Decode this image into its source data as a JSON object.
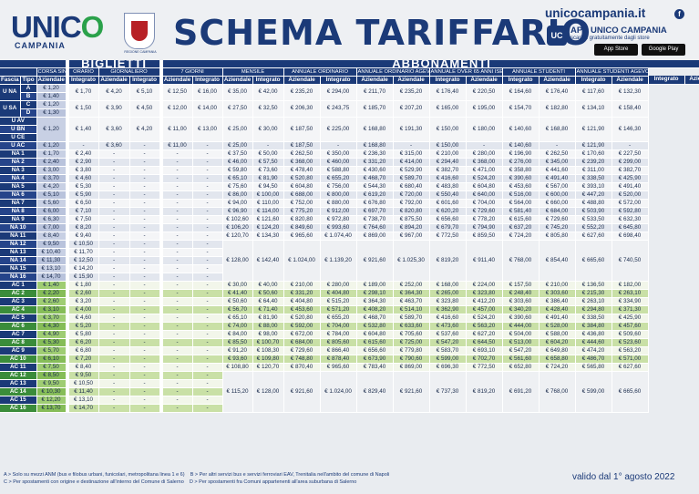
{
  "brand": {
    "logo": "UNICO",
    "logo_sub": "CAMPANIA",
    "region": "REGIONE CAMPANIA",
    "title": "SCHEMA TARIFFARIO",
    "site": "unicocampania.it",
    "app_title": "APP UNICO CAMPANIA",
    "app_desc": "scarica gratuitamente dagli store",
    "app_store": "App Store",
    "google_play": "Google Play",
    "app_icon": "UC"
  },
  "headers": {
    "biglietti": "BIGLIETTI",
    "abbonamenti": "ABBONAMENTI",
    "corsa_singola": "CORSA SINGOLA",
    "orario": "ORARIO",
    "giornaliero": "GIORNALIERO",
    "sette_giorni": "7 GIORNI",
    "mensile": "MENSILE",
    "annuale_ordinario": "ANNUALE ORDINARIO",
    "annuale_agevolato": "ANNUALE ORDINARIO AGEVOLATO ISEE ≤ € 12.500",
    "annuale_over65": "ANNUALE OVER 65 ANNI ISEE ≤ € 10.000",
    "annuale_studenti": "ANNUALE STUDENTI",
    "annuale_studenti_agevolato": "ANNUALE STUDENTI AGEVOLATO ISEE ≤ € 12.500",
    "fascia": "Fascia",
    "tipo": "Tipo",
    "aziendale": "Aziendale",
    "integrato": "Integrato"
  },
  "tariffs": [
    {
      "f": "U NA",
      "t": "A",
      "az": "€ 1,20",
      "span": "una",
      "vals": [
        "€ 1,70",
        "€ 4,20",
        "€ 5,10",
        "€ 12,50",
        "€ 16,00",
        "€ 35,00",
        "€ 42,00",
        "€ 235,20",
        "€ 294,00",
        "€ 211,70",
        "€ 235,20",
        "€ 176,40",
        "€ 220,50",
        "€ 164,60",
        "€ 176,40",
        "€ 117,60",
        "€ 132,30"
      ]
    },
    {
      "f": "",
      "t": "B",
      "az": "€ 1,40",
      "span": "none"
    },
    {
      "f": "U SA",
      "t": "C",
      "az": "€ 1,20",
      "span": "usa",
      "vals": [
        "€ 1,50",
        "€ 3,90",
        "€ 4,50",
        "€ 12,00",
        "€ 14,00",
        "€ 27,50",
        "€ 32,50",
        "€ 206,30",
        "€ 243,75",
        "€ 185,70",
        "€ 207,20",
        "€ 165,00",
        "€ 195,00",
        "€ 154,70",
        "€ 182,80",
        "€ 134,10",
        "€ 158,40"
      ]
    },
    {
      "f": "",
      "t": "D",
      "az": "€ 1,30",
      "span": "none"
    },
    {
      "f": "U AV",
      "t": "",
      "az": "",
      "span": "uav",
      "vals": [
        "€ 1,40",
        "€ 3,60",
        "€ 4,20",
        "€ 11,00",
        "€ 13,00",
        "€ 25,00",
        "€ 30,00",
        "€ 187,50",
        "€ 225,00",
        "€ 168,80",
        "€ 191,30",
        "€ 150,00",
        "€ 180,00",
        "€ 140,60",
        "€ 168,80",
        "€ 121,90",
        "€ 146,30"
      ],
      "az_big": "€ 1,20"
    },
    {
      "f": "U BN",
      "span": "none"
    },
    {
      "f": "U CE",
      "span": "none"
    },
    {
      "f": "U AC",
      "az": "€ 1,20",
      "vals": [
        "-",
        "€ 3,60",
        "-",
        "€ 11,00",
        "-",
        "€ 25,00",
        "-",
        "€ 187,50",
        "-",
        "€ 168,80",
        "-",
        "€ 150,00",
        "-",
        "€ 140,60",
        "-",
        "€ 121,90",
        "-"
      ]
    },
    {
      "f": "NA 1",
      "az": "€ 1,70",
      "vals": [
        "€ 2,40",
        "-",
        "-",
        "-",
        "-",
        "€ 37,50",
        "€ 50,00",
        "€ 262,50",
        "€ 350,00",
        "€ 236,30",
        "€ 315,00",
        "€ 210,00",
        "€ 280,00",
        "€ 196,90",
        "€ 262,50",
        "€ 170,60",
        "€ 227,50"
      ]
    },
    {
      "f": "NA 2",
      "az": "€ 2,40",
      "vals": [
        "€ 2,90",
        "-",
        "-",
        "-",
        "-",
        "€ 46,00",
        "€ 57,50",
        "€ 368,00",
        "€ 460,00",
        "€ 331,20",
        "€ 414,00",
        "€ 294,40",
        "€ 368,00",
        "€ 276,00",
        "€ 345,00",
        "€ 239,20",
        "€ 299,00"
      ]
    },
    {
      "f": "NA 3",
      "az": "€ 3,00",
      "vals": [
        "€ 3,80",
        "-",
        "-",
        "-",
        "-",
        "€ 59,80",
        "€ 73,60",
        "€ 478,40",
        "€ 588,80",
        "€ 430,60",
        "€ 529,90",
        "€ 382,70",
        "€ 471,00",
        "€ 358,80",
        "€ 441,60",
        "€ 311,00",
        "€ 382,70"
      ]
    },
    {
      "f": "NA 4",
      "az": "€ 3,70",
      "vals": [
        "€ 4,60",
        "-",
        "-",
        "-",
        "-",
        "€ 65,10",
        "€ 81,90",
        "€ 520,80",
        "€ 655,20",
        "€ 468,70",
        "€ 589,70",
        "€ 416,60",
        "€ 524,20",
        "€ 390,60",
        "€ 491,40",
        "€ 338,50",
        "€ 425,90"
      ]
    },
    {
      "f": "NA 5",
      "az": "€ 4,20",
      "vals": [
        "€ 5,30",
        "-",
        "-",
        "-",
        "-",
        "€ 75,60",
        "€ 94,50",
        "€ 604,80",
        "€ 756,00",
        "€ 544,30",
        "€ 680,40",
        "€ 483,80",
        "€ 604,80",
        "€ 453,60",
        "€ 567,00",
        "€ 393,10",
        "€ 491,40"
      ]
    },
    {
      "f": "NA 6",
      "az": "€ 5,10",
      "vals": [
        "€ 5,90",
        "-",
        "-",
        "-",
        "-",
        "€ 86,00",
        "€ 100,00",
        "€ 688,00",
        "€ 800,00",
        "€ 619,20",
        "€ 720,00",
        "€ 550,40",
        "€ 640,00",
        "€ 516,00",
        "€ 600,00",
        "€ 447,20",
        "€ 520,00"
      ]
    },
    {
      "f": "NA 7",
      "az": "€ 5,60",
      "vals": [
        "€ 6,50",
        "-",
        "-",
        "-",
        "-",
        "€ 94,00",
        "€ 110,00",
        "€ 752,00",
        "€ 880,00",
        "€ 676,80",
        "€ 792,00",
        "€ 601,60",
        "€ 704,00",
        "€ 564,00",
        "€ 660,00",
        "€ 488,80",
        "€ 572,00"
      ]
    },
    {
      "f": "NA 8",
      "az": "€ 6,00",
      "vals": [
        "€ 7,10",
        "-",
        "-",
        "-",
        "-",
        "€ 96,90",
        "€ 114,00",
        "€ 775,20",
        "€ 912,00",
        "€ 697,70",
        "€ 820,80",
        "€ 620,20",
        "€ 729,60",
        "€ 581,40",
        "€ 684,00",
        "€ 503,90",
        "€ 592,80"
      ]
    },
    {
      "f": "NA 9",
      "az": "€ 6,30",
      "vals": [
        "€ 7,50",
        "-",
        "-",
        "-",
        "-",
        "€ 102,60",
        "€ 121,60",
        "€ 820,80",
        "€ 972,80",
        "€ 738,70",
        "€ 875,50",
        "€ 656,60",
        "€ 778,20",
        "€ 615,60",
        "€ 729,60",
        "€ 533,50",
        "€ 632,30"
      ]
    },
    {
      "f": "NA 10",
      "az": "€ 7,00",
      "vals": [
        "€ 8,20",
        "-",
        "-",
        "-",
        "-",
        "€ 106,20",
        "€ 124,20",
        "€ 849,60",
        "€ 993,60",
        "€ 764,60",
        "€ 894,20",
        "€ 679,70",
        "€ 794,90",
        "€ 637,20",
        "€ 745,20",
        "€ 552,20",
        "€ 645,80"
      ]
    },
    {
      "f": "NA 11",
      "az": "€ 8,40",
      "vals": [
        "€ 9,40",
        "-",
        "-",
        "-",
        "-",
        "€ 120,70",
        "€ 134,30",
        "€ 965,60",
        "€ 1.074,40",
        "€ 869,00",
        "€ 967,00",
        "€ 772,50",
        "€ 859,50",
        "€ 724,20",
        "€ 805,80",
        "€ 627,60",
        "€ 698,40"
      ]
    },
    {
      "f": "NA 12",
      "az": "€ 9,50",
      "vals": [
        "€ 10,50",
        "-",
        "-",
        "-",
        "-"
      ]
    },
    {
      "f": "NA 13",
      "az": "€ 10,40",
      "vals": [
        "€ 11,70",
        "-",
        "-",
        "-",
        "-"
      ]
    },
    {
      "f": "NA 14",
      "az": "€ 11,30",
      "vals": [
        "€ 12,50",
        "-",
        "-",
        "-",
        "-"
      ],
      "merged": [
        "€ 128,00",
        "€ 142,40",
        "€ 1.024,00",
        "€ 1.139,20",
        "€ 921,60",
        "€ 1.025,30",
        "€ 819,20",
        "€ 911,40",
        "€ 768,00",
        "€ 854,40",
        "€ 665,60",
        "€ 740,50"
      ]
    },
    {
      "f": "NA 15",
      "az": "€ 13,10",
      "vals": [
        "€ 14,20",
        "-",
        "-",
        "-",
        "-"
      ]
    },
    {
      "f": "NA 16",
      "az": "€ 14,70",
      "vals": [
        "€ 15,90",
        "-",
        "-",
        "-",
        "-"
      ]
    },
    {
      "f": "AC 1",
      "az": "€ 1,40",
      "vals": [
        "€ 1,80",
        "-",
        "-",
        "-",
        "-",
        "€ 30,00",
        "€ 40,00",
        "€ 210,00",
        "€ 280,00",
        "€ 189,00",
        "€ 252,00",
        "€ 168,00",
        "€ 224,00",
        "€ 157,50",
        "€ 210,00",
        "€ 136,50",
        "€ 182,00"
      ]
    },
    {
      "f": "AC 2",
      "az": "€ 2,20",
      "vals": [
        "€ 2,60",
        "-",
        "-",
        "-",
        "-",
        "€ 41,40",
        "€ 50,60",
        "€ 331,20",
        "€ 404,80",
        "€ 298,10",
        "€ 364,30",
        "€ 265,00",
        "€ 323,80",
        "€ 248,40",
        "€ 303,60",
        "€ 215,30",
        "€ 263,10"
      ]
    },
    {
      "f": "AC 3",
      "az": "€ 2,60",
      "vals": [
        "€ 3,20",
        "-",
        "-",
        "-",
        "-",
        "€ 50,60",
        "€ 64,40",
        "€ 404,80",
        "€ 515,20",
        "€ 364,30",
        "€ 463,70",
        "€ 323,80",
        "€ 412,20",
        "€ 303,60",
        "€ 386,40",
        "€ 263,10",
        "€ 334,90"
      ]
    },
    {
      "f": "AC 4",
      "az": "€ 3,10",
      "vals": [
        "€ 4,00",
        "-",
        "-",
        "-",
        "-",
        "€ 56,70",
        "€ 71,40",
        "€ 453,60",
        "€ 571,20",
        "€ 408,20",
        "€ 514,10",
        "€ 362,90",
        "€ 457,00",
        "€ 340,20",
        "€ 428,40",
        "€ 294,80",
        "€ 371,30"
      ]
    },
    {
      "f": "AC 5",
      "az": "€ 3,70",
      "vals": [
        "€ 4,60",
        "-",
        "-",
        "-",
        "-",
        "€ 65,10",
        "€ 81,90",
        "€ 520,80",
        "€ 655,20",
        "€ 468,70",
        "€ 589,70",
        "€ 416,60",
        "€ 524,20",
        "€ 390,60",
        "€ 491,40",
        "€ 338,50",
        "€ 425,90"
      ]
    },
    {
      "f": "AC 6",
      "az": "€ 4,30",
      "vals": [
        "€ 5,20",
        "-",
        "-",
        "-",
        "-",
        "€ 74,00",
        "€ 88,00",
        "€ 592,00",
        "€ 704,00",
        "€ 532,80",
        "€ 633,60",
        "€ 473,60",
        "€ 563,20",
        "€ 444,00",
        "€ 528,00",
        "€ 384,80",
        "€ 457,60"
      ]
    },
    {
      "f": "AC 7",
      "az": "€ 4,90",
      "vals": [
        "€ 5,80",
        "-",
        "-",
        "-",
        "-",
        "€ 84,00",
        "€ 98,00",
        "€ 672,00",
        "€ 784,00",
        "€ 604,80",
        "€ 705,60",
        "€ 537,60",
        "€ 627,20",
        "€ 504,00",
        "€ 588,00",
        "€ 436,80",
        "€ 509,60"
      ]
    },
    {
      "f": "AC 8",
      "az": "€ 5,30",
      "vals": [
        "€ 6,20",
        "-",
        "-",
        "-",
        "-",
        "€ 85,50",
        "€ 100,70",
        "€ 684,00",
        "€ 805,60",
        "€ 615,60",
        "€ 725,00",
        "€ 547,20",
        "€ 644,50",
        "€ 513,00",
        "€ 604,20",
        "€ 444,60",
        "€ 523,60"
      ]
    },
    {
      "f": "AC 9",
      "az": "€ 5,70",
      "vals": [
        "€ 6,80",
        "-",
        "-",
        "-",
        "-",
        "€ 91,20",
        "€ 108,30",
        "€ 729,60",
        "€ 866,40",
        "€ 656,60",
        "€ 779,80",
        "€ 583,70",
        "€ 693,10",
        "€ 547,20",
        "€ 649,80",
        "€ 474,20",
        "€ 563,20"
      ]
    },
    {
      "f": "AC 10",
      "az": "€ 6,10",
      "vals": [
        "€ 7,20",
        "-",
        "-",
        "-",
        "-",
        "€ 93,60",
        "€ 109,80",
        "€ 748,80",
        "€ 878,40",
        "€ 673,90",
        "€ 790,60",
        "€ 599,00",
        "€ 702,70",
        "€ 561,60",
        "€ 658,80",
        "€ 486,70",
        "€ 571,00"
      ]
    },
    {
      "f": "AC 11",
      "az": "€ 7,50",
      "vals": [
        "€ 8,40",
        "-",
        "-",
        "-",
        "-",
        "€ 108,80",
        "€ 120,70",
        "€ 870,40",
        "€ 965,60",
        "€ 783,40",
        "€ 869,00",
        "€ 696,30",
        "€ 772,50",
        "€ 652,80",
        "€ 724,20",
        "€ 565,80",
        "€ 627,60"
      ]
    },
    {
      "f": "AC 12",
      "az": "€ 8,50",
      "vals": [
        "€ 9,50",
        "-",
        "-",
        "-",
        "-"
      ]
    },
    {
      "f": "AC 13",
      "az": "€ 9,50",
      "vals": [
        "€ 10,50",
        "-",
        "-",
        "-",
        "-"
      ]
    },
    {
      "f": "AC 14",
      "az": "€ 10,30",
      "vals": [
        "€ 11,40",
        "-",
        "-",
        "-",
        "-"
      ],
      "merged": [
        "€ 115,20",
        "€ 128,00",
        "€ 921,60",
        "€ 1.024,00",
        "€ 829,40",
        "€ 921,60",
        "€ 737,30",
        "€ 819,20",
        "€ 691,20",
        "€ 768,00",
        "€ 599,00",
        "€ 665,60"
      ]
    },
    {
      "f": "AC 15",
      "az": "€ 12,20",
      "vals": [
        "€ 13,10",
        "-",
        "-",
        "-",
        "-"
      ]
    },
    {
      "f": "AC 16",
      "az": "€ 13,70",
      "vals": [
        "€ 14,70",
        "-",
        "-",
        "-",
        "-"
      ]
    }
  ],
  "notes": {
    "a": "A > Solo su mezzi ANM (bus e filobus urbani, funicolari, metropolitana linea 1 e 6)",
    "b": "B > Per altri servizi bus e servizi ferroviari EAV, Trenitalia nell'ambito del comune di Napoli",
    "c": "C > Per spostamenti con origine e destinazione all'interno del Comune di Salerno",
    "d": "D > Per spostamenti fra Comuni appartenenti all'area suburbana di Salerno"
  },
  "validity": "valido dal 1° agosto 2022"
}
